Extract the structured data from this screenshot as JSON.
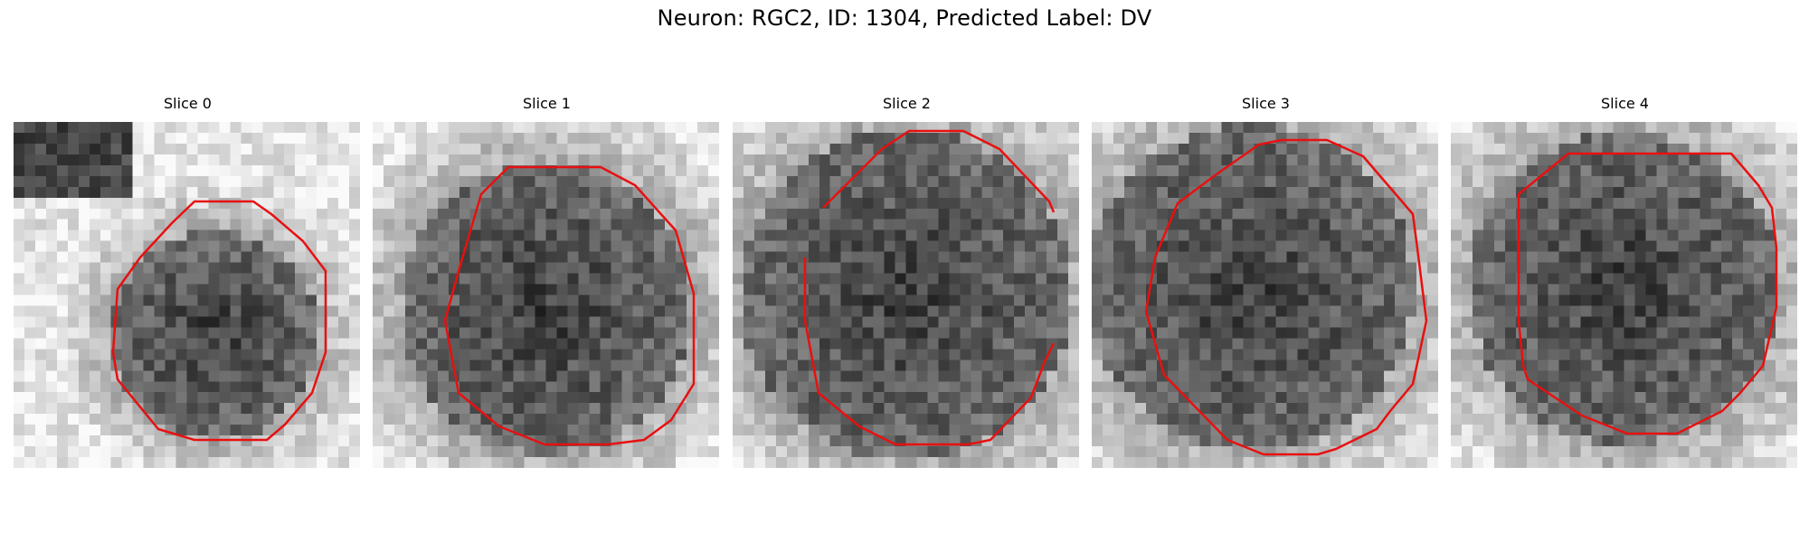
{
  "figure": {
    "title": "Neuron: RGC2, ID: 1304, Predicted Label: DV",
    "contour_color": "#e81010"
  },
  "slices": [
    {
      "title": "Slice 0"
    },
    {
      "title": "Slice 1"
    },
    {
      "title": "Slice 2"
    },
    {
      "title": "Slice 3"
    },
    {
      "title": "Slice 4"
    }
  ]
}
